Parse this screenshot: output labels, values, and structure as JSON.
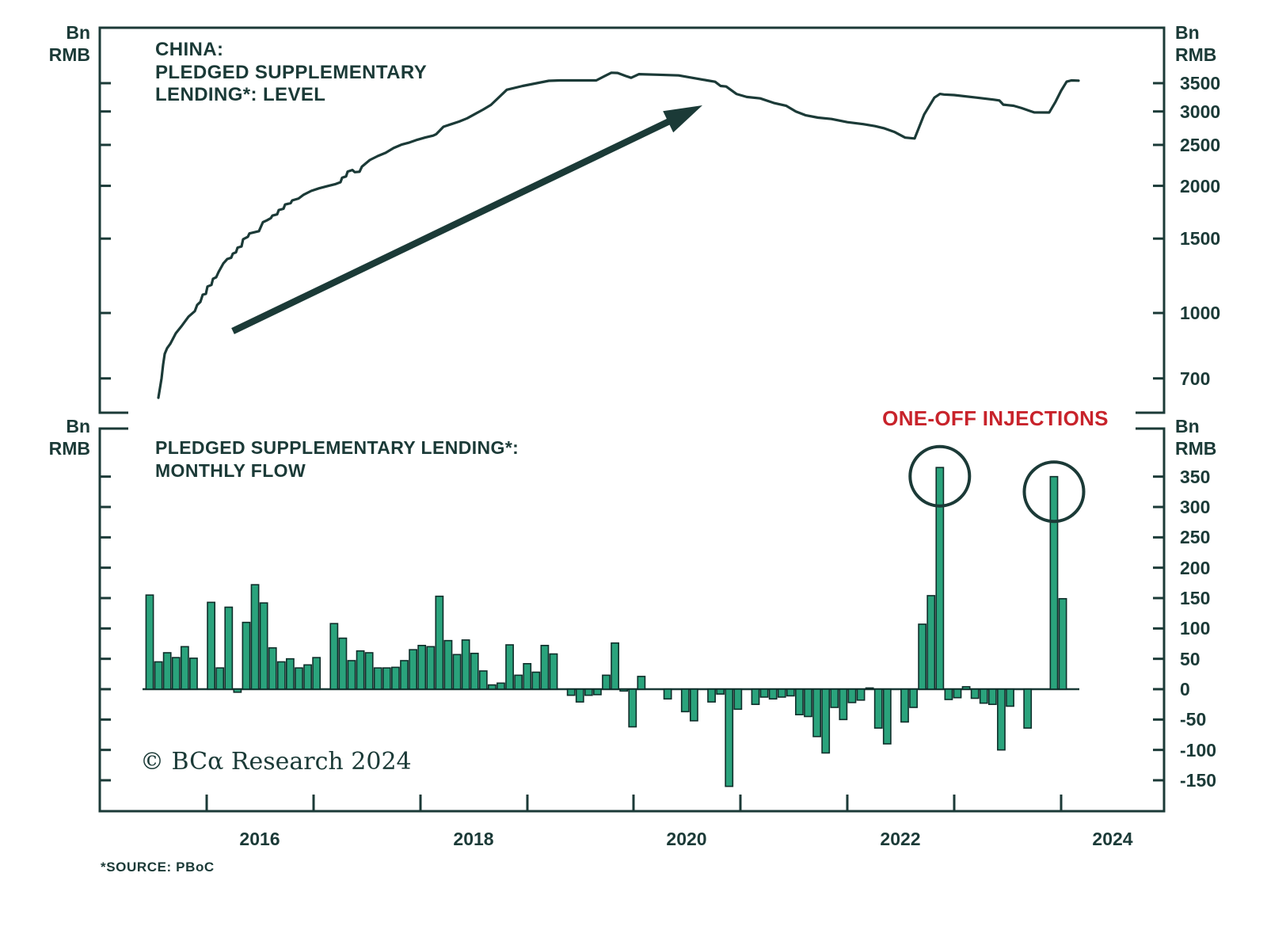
{
  "colors": {
    "ink": "#1b3a37",
    "bar_fill": "#2aa37c",
    "bar_stroke": "#0f2e2a",
    "red": "#c8232b",
    "background": "#ffffff"
  },
  "footer": {
    "copyright": "© BCα Research 2024",
    "source": "*SOURCE: PBoC"
  },
  "x_axis": {
    "year_boundary_ticks": [
      2016,
      2017,
      2018,
      2019,
      2020,
      2021,
      2022,
      2023,
      2024
    ],
    "labels": [
      "2016",
      "2018",
      "2020",
      "2022",
      "2024"
    ]
  },
  "chart_data": [
    {
      "type": "line",
      "title": "CHINA: PLEDGED SUPPLEMENTARY LENDING*: LEVEL",
      "title_lines": [
        "CHINA:",
        "PLEDGED SUPPLEMENTARY",
        "LENDING*: LEVEL"
      ],
      "ylabel": "Bn RMB",
      "ylabel_lines": [
        "Bn",
        "RMB"
      ],
      "yscale": "log",
      "yticks": [
        3500,
        3000,
        2500,
        2000,
        1500,
        1000,
        700
      ],
      "ylim": [
        580,
        4700
      ],
      "x_domain_years": [
        2015.0,
        2024.96
      ],
      "annotation": {
        "type": "up-arrow",
        "from": [
          294,
          418
        ],
        "to": [
          887,
          133
        ]
      },
      "points": [
        [
          200,
          630
        ],
        [
          204,
          700
        ],
        [
          206,
          755
        ],
        [
          208,
          800
        ],
        [
          211,
          825
        ],
        [
          215,
          845
        ],
        [
          222,
          895
        ],
        [
          230,
          935
        ],
        [
          238,
          980
        ],
        [
          246,
          1010
        ],
        [
          249,
          1045
        ],
        [
          253,
          1062
        ],
        [
          256,
          1105
        ],
        [
          260,
          1110
        ],
        [
          262,
          1155
        ],
        [
          267,
          1165
        ],
        [
          269,
          1205
        ],
        [
          273,
          1215
        ],
        [
          276,
          1250
        ],
        [
          282,
          1310
        ],
        [
          287,
          1342
        ],
        [
          292,
          1352
        ],
        [
          294,
          1382
        ],
        [
          298,
          1392
        ],
        [
          300,
          1428
        ],
        [
          305,
          1437
        ],
        [
          307,
          1495
        ],
        [
          313,
          1515
        ],
        [
          315,
          1543
        ],
        [
          327,
          1562
        ],
        [
          332,
          1640
        ],
        [
          337,
          1657
        ],
        [
          342,
          1677
        ],
        [
          344,
          1700
        ],
        [
          350,
          1712
        ],
        [
          352,
          1752
        ],
        [
          358,
          1765
        ],
        [
          360,
          1806
        ],
        [
          367,
          1820
        ],
        [
          369,
          1847
        ],
        [
          377,
          1866
        ],
        [
          383,
          1903
        ],
        [
          393,
          1945
        ],
        [
          403,
          1973
        ],
        [
          413,
          1996
        ],
        [
          423,
          2017
        ],
        [
          430,
          2040
        ],
        [
          432,
          2090
        ],
        [
          437,
          2105
        ],
        [
          439,
          2162
        ],
        [
          445,
          2180
        ],
        [
          448,
          2155
        ],
        [
          454,
          2160
        ],
        [
          457,
          2220
        ],
        [
          467,
          2302
        ],
        [
          477,
          2352
        ],
        [
          487,
          2395
        ],
        [
          497,
          2457
        ],
        [
          507,
          2503
        ],
        [
          517,
          2533
        ],
        [
          527,
          2571
        ],
        [
          537,
          2603
        ],
        [
          547,
          2630
        ],
        [
          551,
          2651
        ],
        [
          560,
          2760
        ],
        [
          570,
          2800
        ],
        [
          580,
          2840
        ],
        [
          590,
          2890
        ],
        [
          600,
          2960
        ],
        [
          610,
          3030
        ],
        [
          620,
          3110
        ],
        [
          630,
          3240
        ],
        [
          640,
          3377
        ],
        [
          660,
          3447
        ],
        [
          693,
          3545
        ],
        [
          707,
          3553
        ],
        [
          753,
          3554
        ],
        [
          765,
          3650
        ],
        [
          772,
          3705
        ],
        [
          780,
          3700
        ],
        [
          790,
          3640
        ],
        [
          797,
          3604
        ],
        [
          807,
          3677
        ],
        [
          830,
          3665
        ],
        [
          857,
          3652
        ],
        [
          893,
          3554
        ],
        [
          903,
          3528
        ],
        [
          910,
          3447
        ],
        [
          917,
          3437
        ],
        [
          930,
          3301
        ],
        [
          943,
          3247
        ],
        [
          960,
          3221
        ],
        [
          977,
          3143
        ],
        [
          993,
          3093
        ],
        [
          1005,
          3000
        ],
        [
          1017,
          2940
        ],
        [
          1033,
          2900
        ],
        [
          1050,
          2880
        ],
        [
          1070,
          2830
        ],
        [
          1090,
          2800
        ],
        [
          1105,
          2770
        ],
        [
          1117,
          2735
        ],
        [
          1130,
          2680
        ],
        [
          1143,
          2601
        ],
        [
          1155,
          2589
        ],
        [
          1167,
          2950
        ],
        [
          1180,
          3235
        ],
        [
          1187,
          3300
        ],
        [
          1192,
          3290
        ],
        [
          1205,
          3280
        ],
        [
          1233,
          3236
        ],
        [
          1255,
          3200
        ],
        [
          1262,
          3186
        ],
        [
          1267,
          3114
        ],
        [
          1280,
          3095
        ],
        [
          1290,
          3056
        ],
        [
          1300,
          3010
        ],
        [
          1306,
          2985
        ],
        [
          1325,
          2983
        ],
        [
          1333,
          3163
        ],
        [
          1340,
          3359
        ],
        [
          1347,
          3529
        ],
        [
          1353,
          3553
        ],
        [
          1362,
          3548
        ]
      ]
    },
    {
      "type": "bar",
      "title": "PLEDGED SUPPLEMENTARY LENDING*: MONTHLY FLOW",
      "title_lines": [
        "PLEDGED SUPPLEMENTARY LENDING*:",
        "MONTHLY FLOW"
      ],
      "ylabel": "Bn RMB",
      "ylabel_lines": [
        "Bn",
        "RMB"
      ],
      "yscale": "linear",
      "yticks": [
        350,
        300,
        250,
        200,
        150,
        100,
        50,
        0,
        -50,
        -100,
        -150
      ],
      "ylim": [
        -190,
        430
      ],
      "freq": "monthly",
      "start": "2015-06",
      "annotation_label": "ONE-OFF INJECTIONS",
      "circled_value_indices": [
        90,
        103
      ],
      "values": [
        155,
        45,
        60,
        52,
        70,
        51,
        0,
        143,
        35,
        135,
        -5,
        110,
        172,
        142,
        68,
        45,
        50,
        35,
        40,
        52,
        0,
        108,
        84,
        47,
        63,
        60,
        35,
        35,
        36,
        47,
        65,
        72,
        70,
        153,
        80,
        57,
        81,
        59,
        30,
        7,
        10,
        73,
        23,
        42,
        28,
        72,
        58,
        0,
        -10,
        -21,
        -10,
        -9,
        23,
        76,
        -3,
        -62,
        21,
        0,
        0,
        -16,
        0,
        -37,
        -52,
        0,
        -21,
        -8,
        -160,
        -33,
        0,
        -25,
        -13,
        -16,
        -13,
        -11,
        -42,
        -45,
        -78,
        -105,
        -30,
        -50,
        -22,
        -18,
        2,
        -64,
        -90,
        0,
        -54,
        -30,
        107,
        154,
        365,
        -17,
        -14,
        4,
        -15,
        -23,
        -25,
        -100,
        -28,
        0,
        -64,
        0,
        0,
        350,
        149
      ]
    }
  ]
}
